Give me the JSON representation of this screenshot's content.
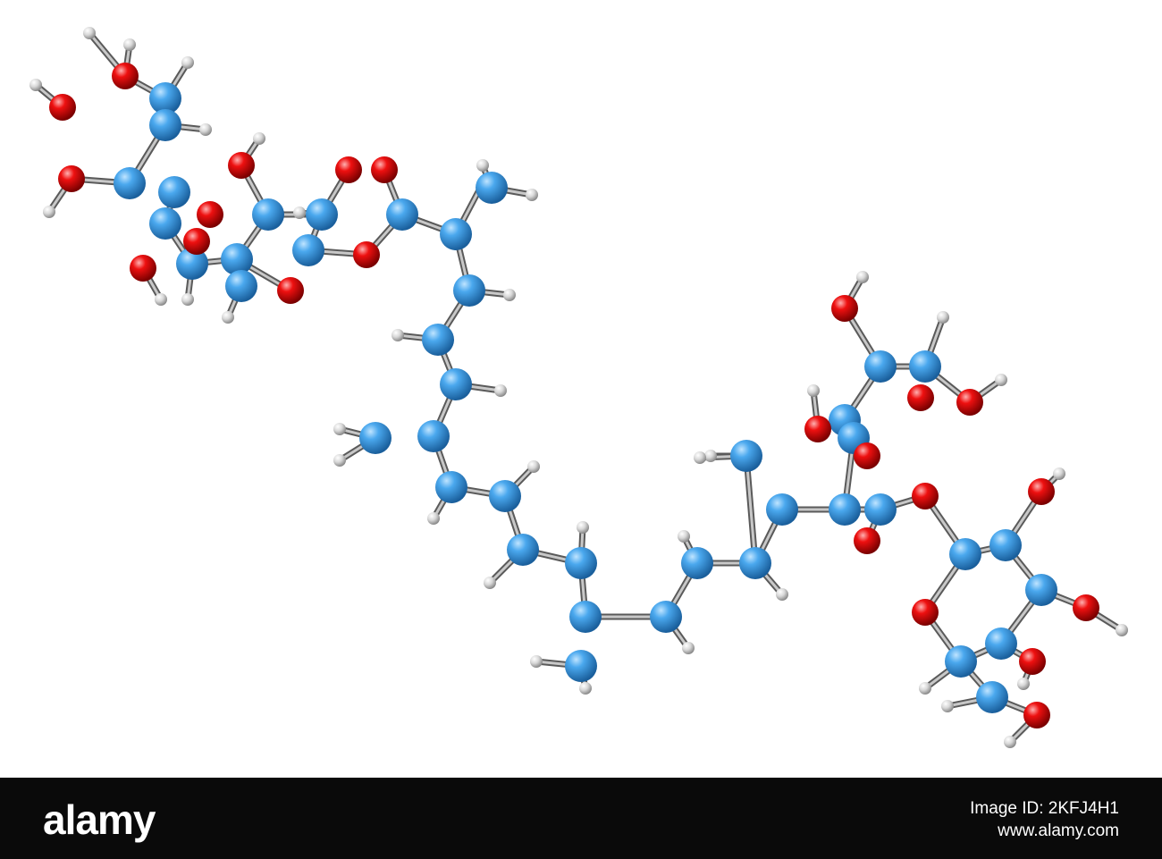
{
  "watermark": {
    "logo": "alamy",
    "image_id": "Image ID: 2KFJ4H1",
    "website": "www.alamy.com"
  }
}
